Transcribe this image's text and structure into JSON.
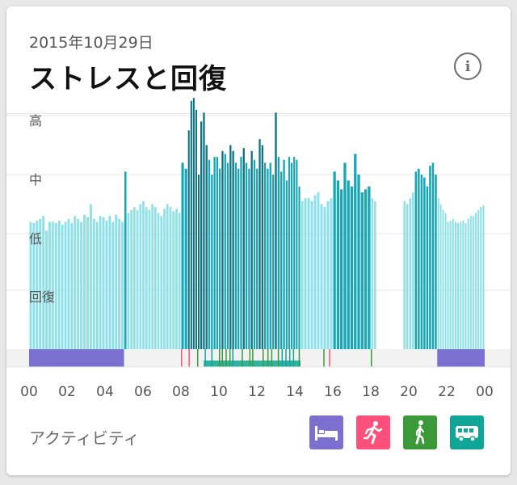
{
  "header": {
    "date": "2015年10月29日",
    "title": "ストレスと回復"
  },
  "chart_data": {
    "type": "bar",
    "y_levels": [
      "高",
      "中",
      "低",
      "回復"
    ],
    "x_ticks": [
      "00",
      "02",
      "04",
      "06",
      "08",
      "10",
      "12",
      "14",
      "16",
      "18",
      "20",
      "22",
      "00"
    ],
    "x_range_hours": [
      0,
      24
    ],
    "stress_scale": "0 = bottom, 1 = 低, 2 = 中, 3 = 高",
    "colors": {
      "recovery": "#8fe1e9",
      "stress": "#16a6b6",
      "high_stress": "#0d7182",
      "sleep": "#7b6fd0",
      "exercise": "#ff4f7b",
      "walking": "#3a9a3a",
      "transport": "#0fa697"
    },
    "segments": [
      {
        "start": 0.0,
        "end": 5.0,
        "values": [
          1.2,
          1.18,
          1.22,
          1.25,
          1.3,
          1.05,
          1.2,
          1.2,
          1.18,
          1.22,
          1.15,
          1.2,
          1.25,
          1.18,
          1.3,
          1.25,
          1.2,
          1.32,
          1.28,
          1.5,
          1.25,
          1.2,
          1.3,
          1.28,
          1.22,
          1.3,
          1.2,
          1.32,
          1.25,
          1.2
        ],
        "kind": "recovery"
      },
      {
        "start": 5.0,
        "end": 5.15,
        "values": [
          2.05
        ],
        "kind": "stress"
      },
      {
        "start": 5.15,
        "end": 8.0,
        "values": [
          1.35,
          1.4,
          1.45,
          1.4,
          1.5,
          1.55,
          1.45,
          1.4,
          1.5,
          1.45,
          1.35,
          1.3,
          1.42,
          1.5,
          1.45,
          1.38,
          1.42,
          1.35
        ],
        "kind": "recovery"
      },
      {
        "start": 8.0,
        "end": 8.35,
        "values": [
          2.2,
          2.1
        ],
        "kind": "stress"
      },
      {
        "start": 8.35,
        "end": 9.0,
        "values": [
          2.75,
          3.25,
          3.3,
          3.1,
          2.0
        ],
        "kind": "high"
      },
      {
        "start": 9.0,
        "end": 9.7,
        "values": [
          2.9,
          3.05,
          2.5,
          2.25,
          2.0
        ],
        "kind": "stress"
      },
      {
        "start": 9.7,
        "end": 12.5,
        "values": [
          2.3,
          2.3,
          2.1,
          2.4,
          2.35,
          2.2,
          2.5,
          2.4,
          2.2,
          2.1,
          2.3,
          2.45,
          2.2,
          2.1,
          2.4,
          2.25,
          2.1,
          2.6,
          2.5,
          2.2
        ],
        "kind": "stress"
      },
      {
        "start": 12.5,
        "end": 13.5,
        "values": [
          2.1,
          2.2,
          2.0,
          3.05,
          2.3,
          2.05,
          2.25
        ],
        "kind": "stress"
      },
      {
        "start": 13.5,
        "end": 14.3,
        "values": [
          1.9,
          2.3,
          2.2,
          2.3,
          2.25,
          1.8
        ],
        "kind": "stress"
      },
      {
        "start": 14.3,
        "end": 16.0,
        "values": [
          1.55,
          1.6,
          1.6,
          1.55,
          1.65,
          1.7,
          1.5,
          1.45,
          1.55,
          1.6
        ],
        "kind": "recovery"
      },
      {
        "start": 16.0,
        "end": 18.0,
        "values": [
          2.05,
          1.9,
          1.75,
          2.2,
          1.9,
          1.8,
          2.35,
          2.0,
          1.7,
          1.75,
          1.8
        ],
        "kind": "stress"
      },
      {
        "start": 18.0,
        "end": 18.3,
        "values": [
          1.6,
          1.55
        ],
        "kind": "recovery"
      },
      {
        "start": 19.7,
        "end": 20.3,
        "values": [
          1.55,
          1.5,
          1.6,
          1.7
        ],
        "kind": "recovery"
      },
      {
        "start": 20.3,
        "end": 21.5,
        "values": [
          2.05,
          2.1,
          2.0,
          1.95,
          1.8,
          2.15,
          2.2,
          2.0
        ],
        "kind": "stress"
      },
      {
        "start": 21.5,
        "end": 22.0,
        "values": [
          1.6,
          1.5,
          1.4,
          1.35
        ],
        "kind": "recovery"
      },
      {
        "start": 22.0,
        "end": 24.0,
        "values": [
          1.2,
          1.22,
          1.25,
          1.2,
          1.18,
          1.2,
          1.22,
          1.18,
          1.25,
          1.3,
          1.3,
          1.35,
          1.4,
          1.45,
          1.48
        ],
        "kind": "recovery"
      }
    ],
    "activity_bands": [
      {
        "start": 0.0,
        "end": 5.0,
        "type": "sleep"
      },
      {
        "start": 21.5,
        "end": 24.0,
        "type": "sleep"
      }
    ],
    "activity_ticks": [
      {
        "t": 8.0,
        "type": "exercise"
      },
      {
        "t": 8.4,
        "type": "exercise"
      },
      {
        "t": 8.85,
        "type": "walking"
      },
      {
        "t": 9.25,
        "type": "transport"
      },
      {
        "t": 9.6,
        "type": "transport"
      },
      {
        "t": 10.0,
        "type": "walking"
      },
      {
        "t": 10.15,
        "type": "walking"
      },
      {
        "t": 10.35,
        "type": "walking"
      },
      {
        "t": 10.55,
        "type": "walking"
      },
      {
        "t": 10.7,
        "type": "transport"
      },
      {
        "t": 11.2,
        "type": "walking"
      },
      {
        "t": 11.6,
        "type": "walking"
      },
      {
        "t": 11.75,
        "type": "walking"
      },
      {
        "t": 12.3,
        "type": "walking"
      },
      {
        "t": 12.55,
        "type": "walking"
      },
      {
        "t": 12.75,
        "type": "walking"
      },
      {
        "t": 13.1,
        "type": "walking"
      },
      {
        "t": 13.3,
        "type": "transport"
      },
      {
        "t": 13.5,
        "type": "transport"
      },
      {
        "t": 13.7,
        "type": "transport"
      },
      {
        "t": 13.9,
        "type": "transport"
      },
      {
        "t": 14.2,
        "type": "walking"
      },
      {
        "t": 15.5,
        "type": "walking"
      },
      {
        "t": 15.8,
        "type": "exercise"
      },
      {
        "t": 18.0,
        "type": "walking"
      }
    ],
    "transport_span": {
      "start": 9.2,
      "end": 14.3
    }
  },
  "activity": {
    "label": "アクティビティ",
    "buttons": [
      {
        "name": "sleep",
        "color": "#7b6fd0",
        "icon": "bed-icon"
      },
      {
        "name": "exercise",
        "color": "#ff4f7b",
        "icon": "running-icon"
      },
      {
        "name": "walking",
        "color": "#3a9a3a",
        "icon": "walking-icon"
      },
      {
        "name": "transport",
        "color": "#0fa697",
        "icon": "bus-icon"
      }
    ]
  }
}
